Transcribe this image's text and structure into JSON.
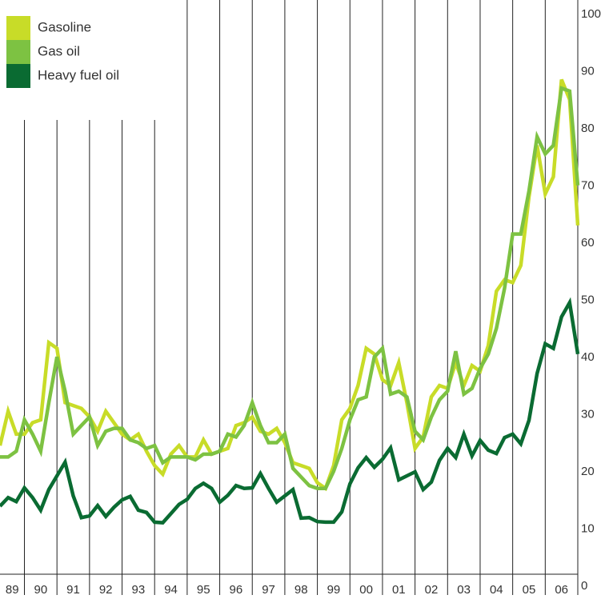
{
  "chart_data": {
    "type": "line",
    "x": [
      1989.25,
      1989.5,
      1989.75,
      1990,
      1990.25,
      1990.5,
      1990.75,
      1991,
      1991.25,
      1991.5,
      1991.75,
      1992,
      1992.25,
      1992.5,
      1992.75,
      1993,
      1993.25,
      1993.5,
      1993.75,
      1994,
      1994.25,
      1994.5,
      1994.75,
      1995,
      1995.25,
      1995.5,
      1995.75,
      1996,
      1996.25,
      1996.5,
      1996.75,
      1997,
      1997.25,
      1997.5,
      1997.75,
      1998,
      1998.25,
      1998.5,
      1998.75,
      1999,
      1999.25,
      1999.5,
      1999.75,
      2000,
      2000.25,
      2000.5,
      2000.75,
      2001,
      2001.25,
      2001.5,
      2001.75,
      2002,
      2002.25,
      2002.5,
      2002.75,
      2003,
      2003.25,
      2003.5,
      2003.75,
      2004,
      2004.25,
      2004.5,
      2004.75,
      2005,
      2005.25,
      2005.5,
      2005.75,
      2006,
      2006.25,
      2006.5,
      2006.75,
      2007
    ],
    "series": [
      {
        "name": "Gasoline",
        "color": "#c8dc28",
        "values": [
          22.5,
          28.5,
          24.5,
          24.5,
          26.5,
          27,
          40.5,
          39.5,
          30,
          29.5,
          29,
          27.5,
          25,
          28.5,
          26.5,
          24.5,
          23.5,
          24.5,
          21.5,
          19,
          17.5,
          21,
          22.5,
          20.5,
          20.5,
          23.5,
          21,
          21.5,
          22,
          26,
          26.5,
          27.5,
          25,
          24.5,
          25.5,
          23,
          19.5,
          19,
          18.5,
          16,
          15,
          19,
          27,
          29,
          33,
          39.5,
          38.5,
          34,
          33,
          37,
          30,
          22,
          24,
          31,
          33,
          32.5,
          37,
          33,
          36.5,
          35.5,
          40,
          49.5,
          51.5,
          51,
          54,
          66,
          75,
          66.5,
          69.5,
          86.5,
          83,
          61
        ]
      },
      {
        "name": "Gas oil",
        "color": "#7dc242",
        "values": [
          20.5,
          20.5,
          21.5,
          27,
          24.5,
          21.5,
          30,
          38,
          32,
          24.5,
          26,
          27.5,
          22.5,
          25,
          25.5,
          25.5,
          23.5,
          23,
          22,
          22.5,
          19.5,
          20.5,
          20.5,
          20.5,
          20,
          21,
          21,
          21.5,
          24.5,
          24,
          26,
          30,
          26,
          23,
          23,
          24.5,
          18.5,
          17,
          15.5,
          15,
          15,
          18,
          22,
          27,
          30.5,
          31,
          38,
          39.5,
          31.5,
          32,
          31,
          25,
          23.5,
          27.5,
          30.5,
          32,
          39,
          31.5,
          32.5,
          36,
          38.5,
          43,
          50,
          59.5,
          59.5,
          67,
          76.5,
          73.5,
          75,
          85,
          84.5,
          68
        ]
      },
      {
        "name": "Heavy fuel oil",
        "color": "#0a6b32",
        "values": [
          11.9,
          13.4,
          12.7,
          15.1,
          13.4,
          11.2,
          14.8,
          17.2,
          19.6,
          13.7,
          9.9,
          10.2,
          12,
          10.1,
          11.7,
          13,
          13.6,
          11.2,
          10.8,
          9.1,
          9,
          10.6,
          12.2,
          13.1,
          15,
          15.9,
          15,
          12.6,
          13.8,
          15.5,
          15,
          15.1,
          17.6,
          15,
          12.6,
          13.7,
          14.8,
          9.8,
          9.9,
          9.2,
          9.1,
          9.1,
          10.9,
          15.8,
          18.6,
          20.4,
          18.7,
          20.1,
          22.1,
          16.5,
          17.2,
          17.9,
          14.8,
          16.1,
          19.9,
          22,
          20.4,
          24.5,
          20.7,
          23.4,
          21.7,
          21.1,
          23.9,
          24.5,
          22.8,
          26.9,
          35.1,
          40.3,
          39.5,
          45,
          47.5,
          38.5
        ]
      }
    ],
    "xlim": [
      1989.25,
      2007
    ],
    "xticks": [
      1990,
      1991,
      1992,
      1993,
      1994,
      1995,
      1996,
      1997,
      1998,
      1999,
      2000,
      2001,
      2002,
      2003,
      2004,
      2005,
      2006,
      2007
    ],
    "year_labels": [
      {
        "value": 1989.5,
        "label": "89"
      },
      {
        "value": 1990.5,
        "label": "90"
      },
      {
        "value": 1991.5,
        "label": "91"
      },
      {
        "value": 1992.5,
        "label": "92"
      },
      {
        "value": 1993.5,
        "label": "93"
      },
      {
        "value": 1994.5,
        "label": "94"
      },
      {
        "value": 1995.5,
        "label": "95"
      },
      {
        "value": 1996.5,
        "label": "96"
      },
      {
        "value": 1997.5,
        "label": "97"
      },
      {
        "value": 1998.5,
        "label": "98"
      },
      {
        "value": 1999.5,
        "label": "99"
      },
      {
        "value": 2000.5,
        "label": "00"
      },
      {
        "value": 2001.5,
        "label": "01"
      },
      {
        "value": 2002.5,
        "label": "02"
      },
      {
        "value": 2003.5,
        "label": "03"
      },
      {
        "value": 2004.5,
        "label": "04"
      },
      {
        "value": 2005.5,
        "label": "05"
      },
      {
        "value": 2006.5,
        "label": "06"
      }
    ],
    "ylim": [
      0,
      100
    ],
    "yticks": [
      0,
      10,
      20,
      30,
      40,
      50,
      60,
      70,
      80,
      90,
      100
    ],
    "grid": true,
    "legend": "top-left"
  }
}
